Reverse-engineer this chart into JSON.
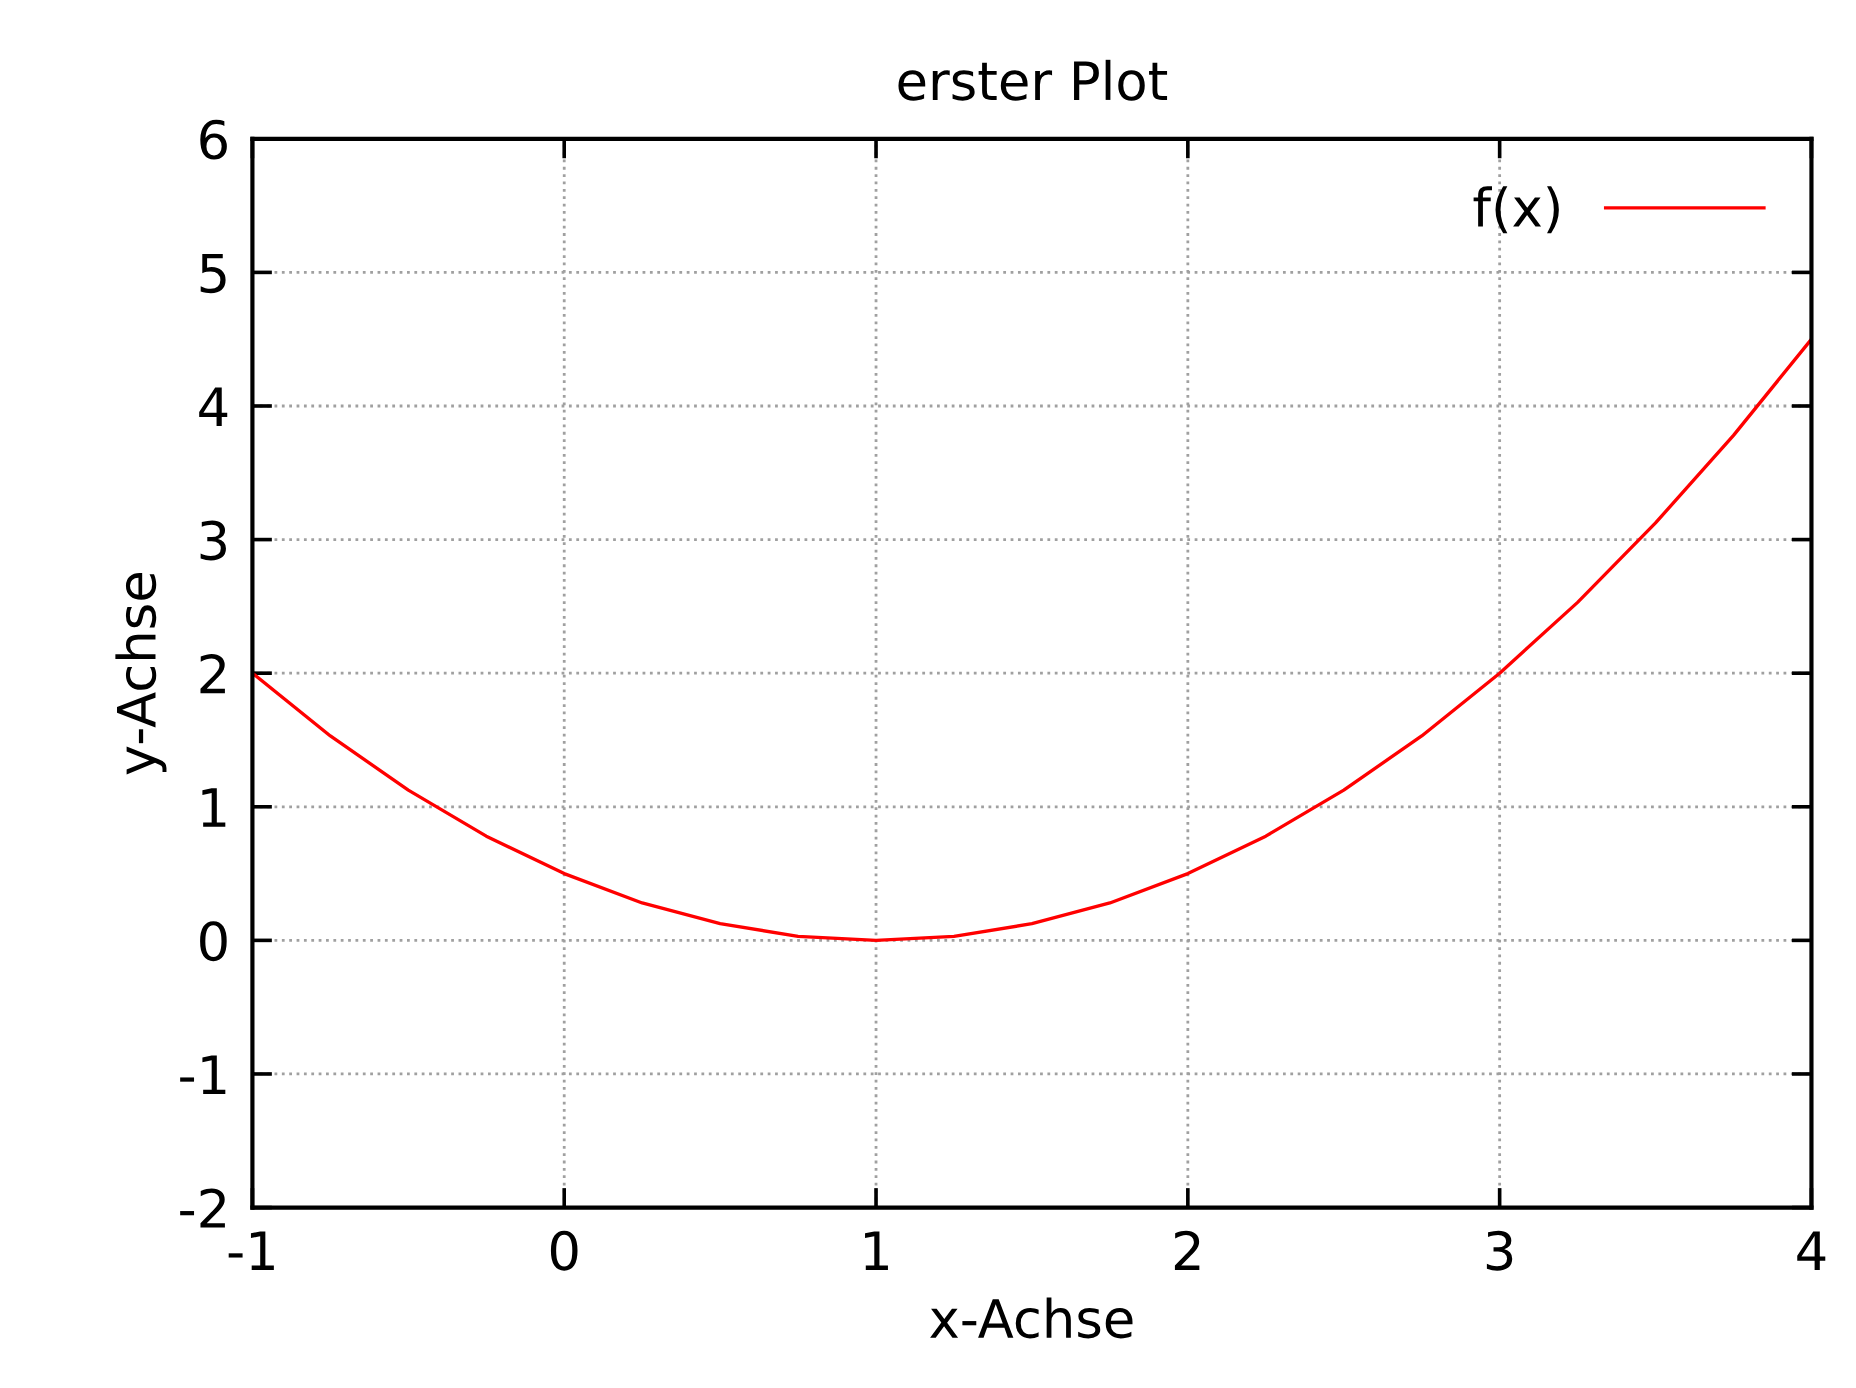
{
  "chart_data": {
    "type": "line",
    "title": "erster Plot",
    "xlabel": "x-Achse",
    "ylabel": "y-Achse",
    "series": [
      {
        "name": "f(x)",
        "color": "#ff0000",
        "x": [
          -1,
          -0.75,
          -0.5,
          -0.25,
          0,
          0.25,
          0.5,
          0.75,
          1,
          1.25,
          1.5,
          1.75,
          2,
          2.25,
          2.5,
          2.75,
          3,
          3.25,
          3.5,
          3.75,
          4
        ],
        "values": [
          2,
          1.53,
          1.125,
          0.78,
          0.5,
          0.28,
          0.125,
          0.03,
          0,
          0.03,
          0.125,
          0.28,
          0.5,
          0.78,
          1.125,
          1.53,
          2,
          2.53,
          3.125,
          3.78,
          4.5
        ]
      }
    ],
    "xlim": [
      -1,
      4
    ],
    "ylim": [
      -2,
      6
    ],
    "xticks": [
      -1,
      0,
      1,
      2,
      3,
      4
    ],
    "yticks": [
      -2,
      -1,
      0,
      1,
      2,
      3,
      4,
      5,
      6
    ],
    "grid": true,
    "legend": "top right",
    "marker": "none",
    "line_style": "solid"
  }
}
